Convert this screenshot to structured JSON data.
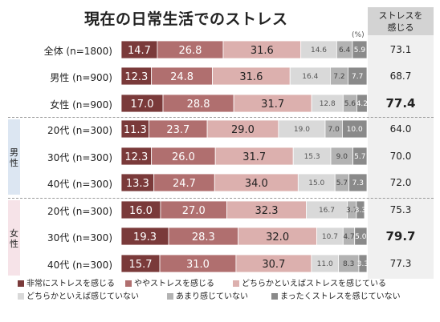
{
  "title": "現在の日常生活でのストレス",
  "unit": "(%)",
  "stress_header": [
    "ストレスを",
    "感じる"
  ],
  "groups": {
    "male": "男性",
    "female": "女性"
  },
  "colors": [
    "#7a3a3a",
    "#b06f6f",
    "#dcb0ae",
    "#d9d9d9",
    "#b3b3b3",
    "#8a8a8a"
  ],
  "chart_data": {
    "type": "bar",
    "orientation": "horizontal",
    "stacked": true,
    "title": "現在の日常生活でのストレス",
    "categories": [
      "全体 (n=1800)",
      "男性 (n=900)",
      "女性 (n=900)",
      "20代 (n=300)",
      "30代 (n=300)",
      "40代 (n=300)",
      "20代 (n=300)",
      "30代 (n=300)",
      "40代 (n=300)"
    ],
    "series": [
      {
        "name": "非常にストレスを感じる",
        "values": [
          14.7,
          12.3,
          17.0,
          11.3,
          12.3,
          13.3,
          16.0,
          19.3,
          15.7
        ]
      },
      {
        "name": "ややストレスを感じる",
        "values": [
          26.8,
          24.8,
          28.8,
          23.7,
          26.0,
          24.7,
          27.0,
          28.3,
          31.0
        ]
      },
      {
        "name": "どちらかといえばストレスを感じている",
        "values": [
          31.6,
          31.6,
          31.7,
          29.0,
          31.7,
          34.0,
          32.3,
          32.0,
          30.7
        ]
      },
      {
        "name": "どちらかといえば感じていない",
        "values": [
          14.6,
          16.4,
          12.8,
          19.0,
          15.3,
          15.0,
          16.7,
          10.7,
          11.0
        ]
      },
      {
        "name": "あまり感じていない",
        "values": [
          6.4,
          7.2,
          5.6,
          7.0,
          9.0,
          5.7,
          3.7,
          4.7,
          8.3
        ]
      },
      {
        "name": "まったくストレスを感じていない",
        "values": [
          5.9,
          7.7,
          4.2,
          10.0,
          5.7,
          7.3,
          3.3,
          5.0,
          3.3
        ]
      }
    ],
    "value_labels": [
      [
        "14.7",
        "26.8",
        "31.6",
        "14.6",
        "6.4",
        "5.9"
      ],
      [
        "12.3",
        "24.8",
        "31.6",
        "16.4",
        "7.2",
        "7.7"
      ],
      [
        "17.0",
        "28.8",
        "31.7",
        "12.8",
        "5.6",
        "4.2"
      ],
      [
        "11.3",
        "23.7",
        "29.0",
        "19.0",
        "7.0",
        "10.0"
      ],
      [
        "12.3",
        "26.0",
        "31.7",
        "15.3",
        "9.0",
        "5.7"
      ],
      [
        "13.3",
        "24.7",
        "34.0",
        "15.0",
        "5.7",
        "7.3"
      ],
      [
        "16.0",
        "27.0",
        "32.3",
        "16.7",
        "3.7",
        "3.3"
      ],
      [
        "19.3",
        "28.3",
        "32.0",
        "10.7",
        "4.7",
        "5.0"
      ],
      [
        "15.7",
        "31.0",
        "30.7",
        "11.0",
        "8.3",
        "3.3"
      ]
    ],
    "stress_total": [
      "73.1",
      "68.7",
      "77.4",
      "64.0",
      "70.0",
      "72.0",
      "75.3",
      "79.7",
      "77.3"
    ],
    "highlight_totals": [
      2,
      7
    ],
    "xlim": [
      0,
      100
    ],
    "legend": "bottom"
  }
}
